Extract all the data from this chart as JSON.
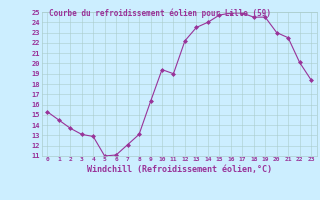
{
  "hours": [
    0,
    1,
    2,
    3,
    4,
    5,
    6,
    7,
    8,
    9,
    10,
    11,
    12,
    13,
    14,
    15,
    16,
    17,
    18,
    19,
    20,
    21,
    22,
    23
  ],
  "values": [
    15.3,
    14.5,
    13.7,
    13.1,
    12.9,
    11.0,
    11.1,
    12.1,
    13.1,
    16.3,
    19.4,
    19.0,
    22.2,
    23.5,
    24.0,
    24.7,
    24.9,
    24.9,
    24.5,
    24.5,
    23.0,
    22.5,
    20.1,
    18.4
  ],
  "title": "Courbe du refroidissement éolien pour Lille (59)",
  "xlabel": "Windchill (Refroidissement éolien,°C)",
  "ylim": [
    11,
    25
  ],
  "xlim": [
    -0.5,
    23.5
  ],
  "yticks": [
    11,
    12,
    13,
    14,
    15,
    16,
    17,
    18,
    19,
    20,
    21,
    22,
    23,
    24,
    25
  ],
  "xticks": [
    0,
    1,
    2,
    3,
    4,
    5,
    6,
    7,
    8,
    9,
    10,
    11,
    12,
    13,
    14,
    15,
    16,
    17,
    18,
    19,
    20,
    21,
    22,
    23
  ],
  "line_color": "#993399",
  "marker": "D",
  "bg_color": "#cceeff",
  "grid_color": "#aacccc",
  "tick_label_color": "#993399",
  "xlabel_color": "#993399",
  "title_color": "#993399"
}
